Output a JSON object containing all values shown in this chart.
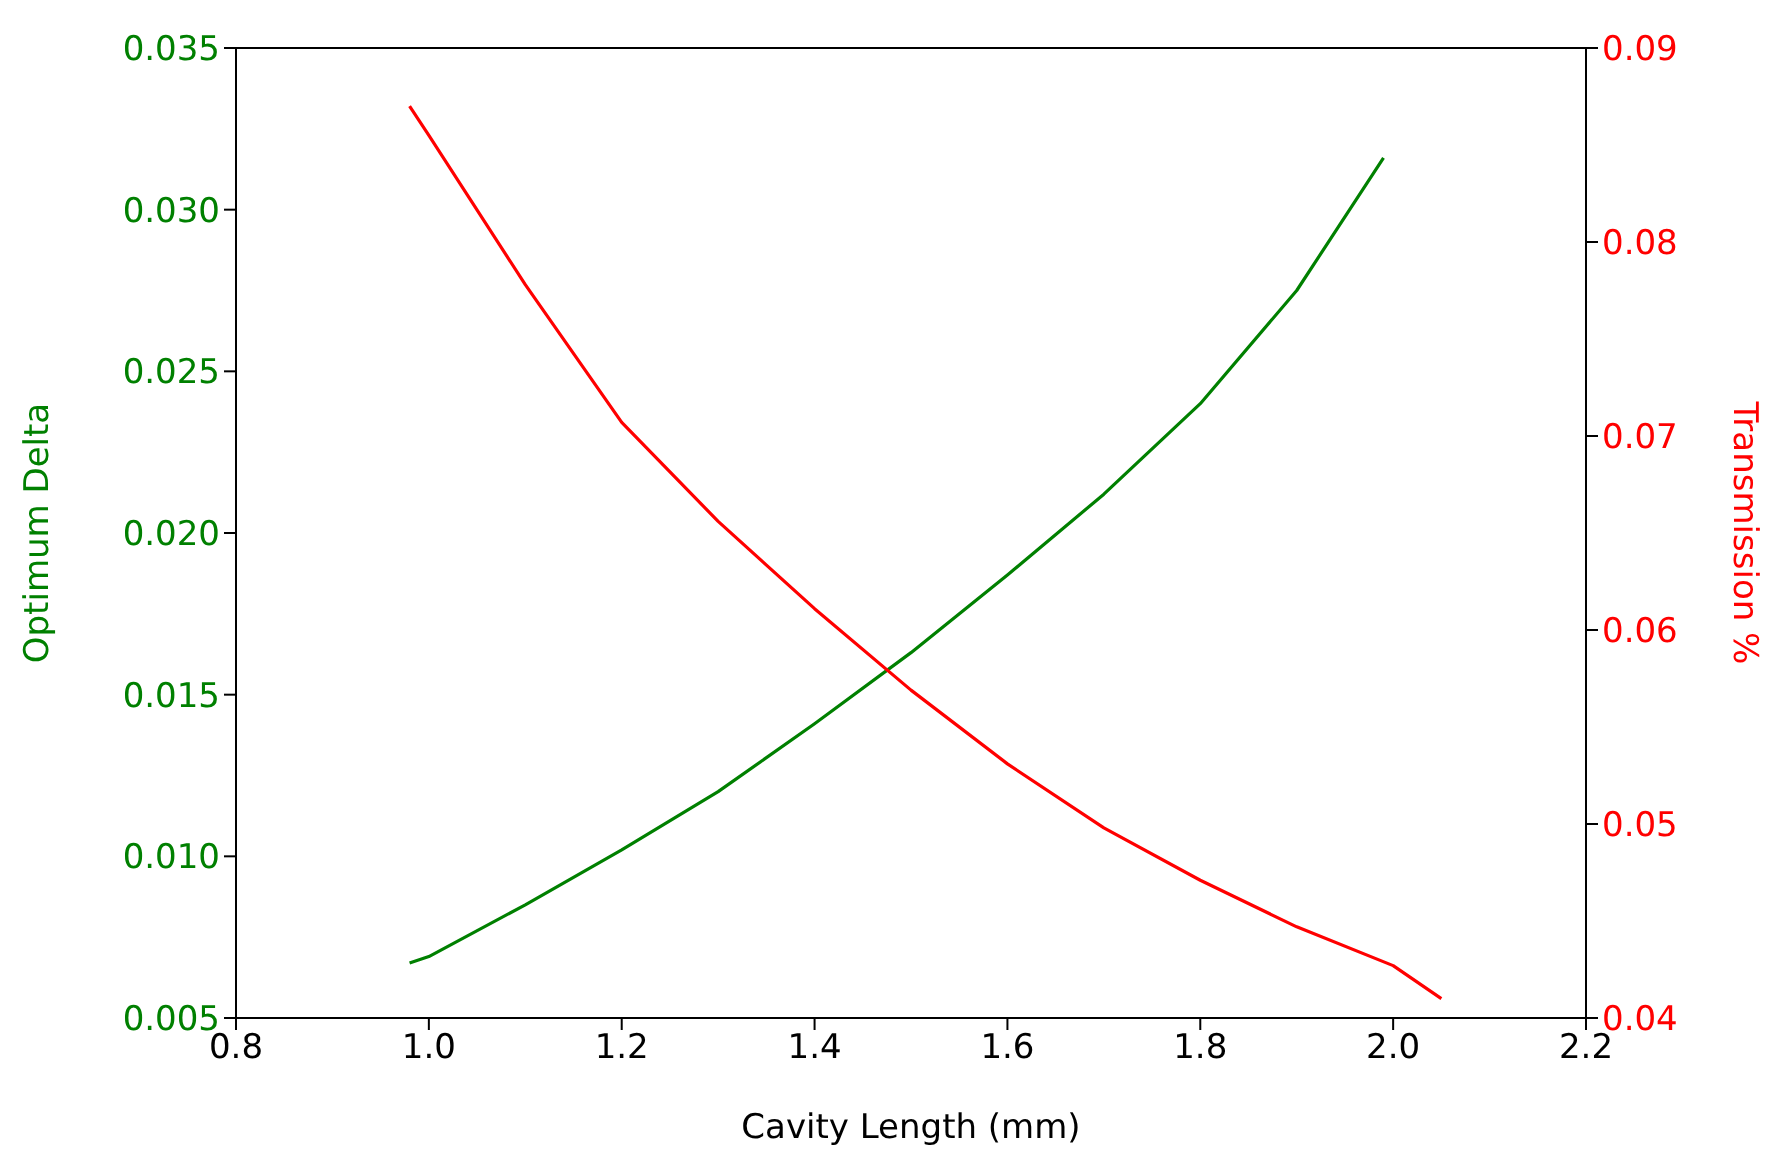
{
  "chart_data": {
    "type": "line",
    "xlabel": "Cavity Length (mm)",
    "ylabel": "Optimum Delta",
    "y2label": "Transmission %",
    "xlim": [
      0.8,
      2.2
    ],
    "xticks": [
      {
        "value": 0.8,
        "label": "0.8"
      },
      {
        "value": 1,
        "label": "1.0"
      },
      {
        "value": 1.2,
        "label": "1.2"
      },
      {
        "value": 1.4,
        "label": "1.4"
      },
      {
        "value": 1.6,
        "label": "1.6"
      },
      {
        "value": 1.8,
        "label": "1.8"
      },
      {
        "value": 2,
        "label": "2.0"
      },
      {
        "value": 2.2,
        "label": "2.2"
      }
    ],
    "ylim": [
      0.005,
      0.035
    ],
    "yticks": [
      {
        "value": 0.005,
        "label": "0.005"
      },
      {
        "value": 0.01,
        "label": "0.010"
      },
      {
        "value": 0.015,
        "label": "0.015"
      },
      {
        "value": 0.02,
        "label": "0.020"
      },
      {
        "value": 0.025,
        "label": "0.025"
      },
      {
        "value": 0.03,
        "label": "0.030"
      },
      {
        "value": 0.035,
        "label": "0.035"
      }
    ],
    "y2lim": [
      0.04,
      0.09
    ],
    "y2ticks": [
      {
        "value": 0.04,
        "label": "0.04"
      },
      {
        "value": 0.05,
        "label": "0.05"
      },
      {
        "value": 0.06,
        "label": "0.06"
      },
      {
        "value": 0.07,
        "label": "0.07"
      },
      {
        "value": 0.08,
        "label": "0.08"
      },
      {
        "value": 0.09,
        "label": "0.09"
      }
    ],
    "grid": false,
    "legend": false,
    "series": [
      {
        "color": "#008000",
        "x": [
          0.98,
          1.0,
          1.1,
          1.2,
          1.3,
          1.4,
          1.5,
          1.6,
          1.7,
          1.8,
          1.9,
          1.99
        ],
        "values": [
          0.0067,
          0.0069,
          0.0085,
          0.0102,
          0.012,
          0.0141,
          0.0163,
          0.0187,
          0.0212,
          0.024,
          0.0275,
          0.0316
        ]
      },
      {
        "color": "#ff0000",
        "axis": "y2",
        "x": [
          0.98,
          1.0,
          1.1,
          1.2,
          1.3,
          1.4,
          1.5,
          1.6,
          1.7,
          1.8,
          1.9,
          2.0,
          2.05
        ],
        "values": [
          0.087,
          0.0855,
          0.0778,
          0.0707,
          0.0656,
          0.0611,
          0.0569,
          0.0531,
          0.0498,
          0.0471,
          0.0447,
          0.0427,
          0.041
        ]
      }
    ]
  }
}
